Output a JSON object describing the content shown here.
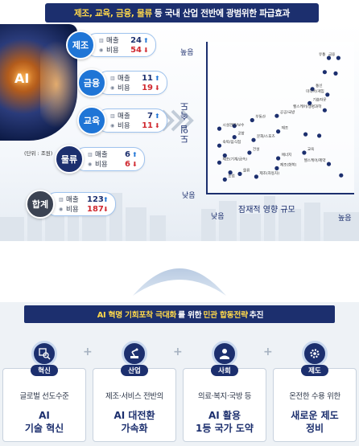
{
  "banner": {
    "highlight": "제조, 교육, 금융, 물류",
    "rest": "등 국내 산업 전반에 광범위한 파급효과"
  },
  "ai_image_text": "AI",
  "unit_note": "(단위 : 조원)",
  "ellipsis": "...",
  "metric_labels": {
    "revenue": "매출",
    "cost": "비용"
  },
  "sectors": [
    {
      "name": "제조",
      "revenue": "24",
      "cost": "54"
    },
    {
      "name": "금융",
      "revenue": "11",
      "cost": "19"
    },
    {
      "name": "교육",
      "revenue": "7",
      "cost": "11"
    },
    {
      "name": "물류",
      "revenue": "6",
      "cost": "6"
    },
    {
      "name": "합계",
      "revenue": "123",
      "cost": "187"
    }
  ],
  "chart_data": {
    "type": "scatter",
    "ylabel": "도입 속도",
    "xlabel": "잠재적 영향 규모",
    "y_high": "높음",
    "y_low": "낮음",
    "x_low": "낮음",
    "x_high": "높음",
    "scale": "qualitative, 0-100",
    "points": [
      {
        "label": "유통",
        "x": 85,
        "y": 92
      },
      {
        "label": "금융",
        "x": 92,
        "y": 92
      },
      {
        "label": "",
        "x": 82,
        "y": 82
      },
      {
        "label": "",
        "x": 90,
        "y": 81
      },
      {
        "label": "통신",
        "x": 73,
        "y": 70
      },
      {
        "label": "미디어/게임",
        "x": 84,
        "y": 66
      },
      {
        "label": "기술자문",
        "x": 71,
        "y": 60
      },
      {
        "label": "헬스케어/생명과학",
        "x": 82,
        "y": 55
      },
      {
        "label": "공공/국방",
        "x": 47,
        "y": 51
      },
      {
        "label": "부동산",
        "x": 29,
        "y": 48
      },
      {
        "label": "",
        "x": 16,
        "y": 44
      },
      {
        "label": "시설관리/보수",
        "x": 5,
        "y": 42
      },
      {
        "label": "제조",
        "x": 48,
        "y": 40
      },
      {
        "label": "",
        "x": 68,
        "y": 38
      },
      {
        "label": "",
        "x": 78,
        "y": 37
      },
      {
        "label": "공항",
        "x": 16,
        "y": 36
      },
      {
        "label": "문화/스포츠",
        "x": 30,
        "y": 34
      },
      {
        "label": "숙박/음식점",
        "x": 5,
        "y": 30
      },
      {
        "label": "건설",
        "x": 27,
        "y": 25
      },
      {
        "label": "교육",
        "x": 67,
        "y": 25
      },
      {
        "label": "",
        "x": 9,
        "y": 23
      },
      {
        "label": "에너지",
        "x": 48,
        "y": 21
      },
      {
        "label": "제조(기계/금속)",
        "x": 5,
        "y": 18
      },
      {
        "label": "헬스케어/제약",
        "x": 85,
        "y": 17
      },
      {
        "label": "제조(화학)",
        "x": 47,
        "y": 14
      },
      {
        "label": "",
        "x": 13,
        "y": 11
      },
      {
        "label": "물류",
        "x": 20,
        "y": 10
      },
      {
        "label": "제조(자동차)",
        "x": 32,
        "y": 8
      },
      {
        "label": "농업",
        "x": 9,
        "y": 6
      },
      {
        "label": "",
        "x": 94,
        "y": 9
      }
    ]
  },
  "strategy": {
    "lead": "AI 혁명 기회포착 극대화",
    "mid": "를 위한",
    "accent": "민관 합동전략",
    "tail": "추진"
  },
  "pillars": [
    {
      "badge": "혁신",
      "desc": "글로벌 선도수준",
      "head1": "AI",
      "head2": "기술 혁신"
    },
    {
      "badge": "산업",
      "desc": "제조·서비스 전반의",
      "head1": "AI 대전환",
      "head2": "가속화"
    },
    {
      "badge": "사회",
      "desc": "의료·복지·국방 등",
      "head1": "AI 활용",
      "head2": "1등 국가 도약"
    },
    {
      "badge": "제도",
      "desc": "온전한 수용 위한",
      "head1": "새로운 제도",
      "head2": "정비"
    }
  ]
}
